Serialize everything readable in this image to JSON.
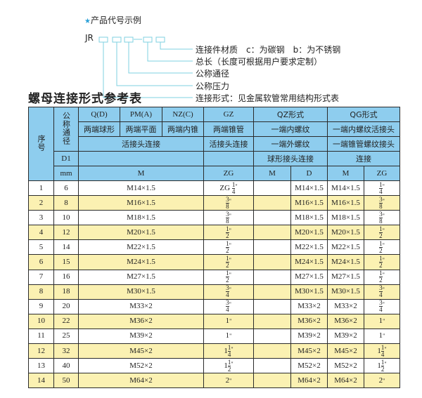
{
  "code_example": {
    "star_icon": "star-icon",
    "title": "产品代号示例",
    "prefix": "JR",
    "labels": [
      "连接件材质　c：为碳钢　b：为不锈钢",
      "总长（长度可根据用户要求定制）",
      "公称通径",
      "公称压力",
      "连接形式：见金属软管常用结构形式表"
    ],
    "line_color": "#7fd0e0"
  },
  "section_title": "螺母连接形式参考表",
  "table": {
    "header_color": "#8ecdee",
    "alt_row_color": "#fbf1b2",
    "h": {
      "seq": "序号",
      "nominal": "公称通径",
      "qd": "Q(D)",
      "pma": "PM(A)",
      "nzc": "NZ(C)",
      "gz": "GZ",
      "qz": "QZ形式",
      "qg": "QG形式",
      "r2": [
        "两端球形",
        "两端平面",
        "两端内锥",
        "两端锥管",
        "一端内螺纹",
        "一端内螺纹活接头"
      ],
      "r3": [
        "活接头连接",
        "活接头连接",
        "一端外螺纹",
        "一端锥管螺纹接头"
      ],
      "d1": "D1",
      "r4": [
        "球形接头连接",
        "连接"
      ],
      "mm": "mm",
      "r5": [
        "M",
        "ZG",
        "M",
        "D",
        "M",
        "ZG"
      ]
    },
    "rows": [
      {
        "no": "1",
        "d": "6",
        "m": "M14×1.5",
        "zg": {
          "p": "ZG",
          "w": "",
          "n": "1",
          "d": "4"
        },
        "qzm": "",
        "qzd": "M14×1.5",
        "qgm": "M14×1.5",
        "qgzg": {
          "w": "",
          "n": "1",
          "d": "4"
        }
      },
      {
        "no": "2",
        "d": "8",
        "m": "M16×1.5",
        "zg": {
          "p": "",
          "w": "",
          "n": "3",
          "d": "8"
        },
        "qzm": "",
        "qzd": "M16×1.5",
        "qgm": "M16×1.5",
        "qgzg": {
          "w": "",
          "n": "3",
          "d": "8"
        }
      },
      {
        "no": "3",
        "d": "10",
        "m": "M18×1.5",
        "zg": {
          "p": "",
          "w": "",
          "n": "3",
          "d": "8"
        },
        "qzm": "",
        "qzd": "M18×1.5",
        "qgm": "M18×1.5",
        "qgzg": {
          "w": "",
          "n": "3",
          "d": "8"
        }
      },
      {
        "no": "4",
        "d": "12",
        "m": "M20×1.5",
        "zg": {
          "p": "",
          "w": "",
          "n": "1",
          "d": "2"
        },
        "qzm": "",
        "qzd": "M20×1.5",
        "qgm": "M20×1.5",
        "qgzg": {
          "w": "",
          "n": "1",
          "d": "2"
        }
      },
      {
        "no": "5",
        "d": "14",
        "m": "M22×1.5",
        "zg": {
          "p": "",
          "w": "",
          "n": "1",
          "d": "2"
        },
        "qzm": "",
        "qzd": "M22×1.5",
        "qgm": "M22×1.5",
        "qgzg": {
          "w": "",
          "n": "1",
          "d": "2"
        }
      },
      {
        "no": "6",
        "d": "15",
        "m": "M24×1.5",
        "zg": {
          "p": "",
          "w": "",
          "n": "1",
          "d": "2"
        },
        "qzm": "",
        "qzd": "M24×1.5",
        "qgm": "M24×1.5",
        "qgzg": {
          "w": "",
          "n": "1",
          "d": "2"
        }
      },
      {
        "no": "7",
        "d": "16",
        "m": "M27×1.5",
        "zg": {
          "p": "",
          "w": "",
          "n": "1",
          "d": "2"
        },
        "qzm": "",
        "qzd": "M27×1.5",
        "qgm": "M27×1.5",
        "qgzg": {
          "w": "",
          "n": "1",
          "d": "2"
        }
      },
      {
        "no": "8",
        "d": "18",
        "m": "M30×1.5",
        "zg": {
          "p": "",
          "w": "",
          "n": "3",
          "d": "4"
        },
        "qzm": "",
        "qzd": "M30×1.5",
        "qgm": "M30×1.5",
        "qgzg": {
          "w": "",
          "n": "3",
          "d": "4"
        }
      },
      {
        "no": "9",
        "d": "20",
        "m": "M33×2",
        "zg": {
          "p": "",
          "w": "",
          "n": "3",
          "d": "4"
        },
        "qzm": "",
        "qzd": "M33×2",
        "qgm": "M33×2",
        "qgzg": {
          "w": "",
          "n": "3",
          "d": "4"
        }
      },
      {
        "no": "10",
        "d": "22",
        "m": "M36×2",
        "zg": {
          "p": "",
          "w": "1",
          "n": "",
          "d": ""
        },
        "qzm": "",
        "qzd": "M36×2",
        "qgm": "M36×2",
        "qgzg": {
          "w": "1",
          "n": "",
          "d": ""
        }
      },
      {
        "no": "11",
        "d": "25",
        "m": "M39×2",
        "zg": {
          "p": "",
          "w": "1",
          "n": "",
          "d": ""
        },
        "qzm": "",
        "qzd": "M39×2",
        "qgm": "M39×2",
        "qgzg": {
          "w": "1",
          "n": "",
          "d": ""
        }
      },
      {
        "no": "12",
        "d": "32",
        "m": "M45×2",
        "zg": {
          "p": "",
          "w": "1",
          "n": "1",
          "d": "4"
        },
        "qzm": "",
        "qzd": "M45×2",
        "qgm": "M45×2",
        "qgzg": {
          "w": "1",
          "n": "1",
          "d": "4"
        }
      },
      {
        "no": "13",
        "d": "40",
        "m": "M52×2",
        "zg": {
          "p": "",
          "w": "1",
          "n": "1",
          "d": "2"
        },
        "qzm": "",
        "qzd": "M52×2",
        "qgm": "M52×2",
        "qgzg": {
          "w": "1",
          "n": "1",
          "d": "2"
        }
      },
      {
        "no": "14",
        "d": "50",
        "m": "M64×2",
        "zg": {
          "p": "",
          "w": "2",
          "n": "",
          "d": ""
        },
        "qzm": "",
        "qzd": "M64×2",
        "qgm": "M64×2",
        "qgzg": {
          "w": "2",
          "n": "",
          "d": ""
        }
      }
    ]
  }
}
